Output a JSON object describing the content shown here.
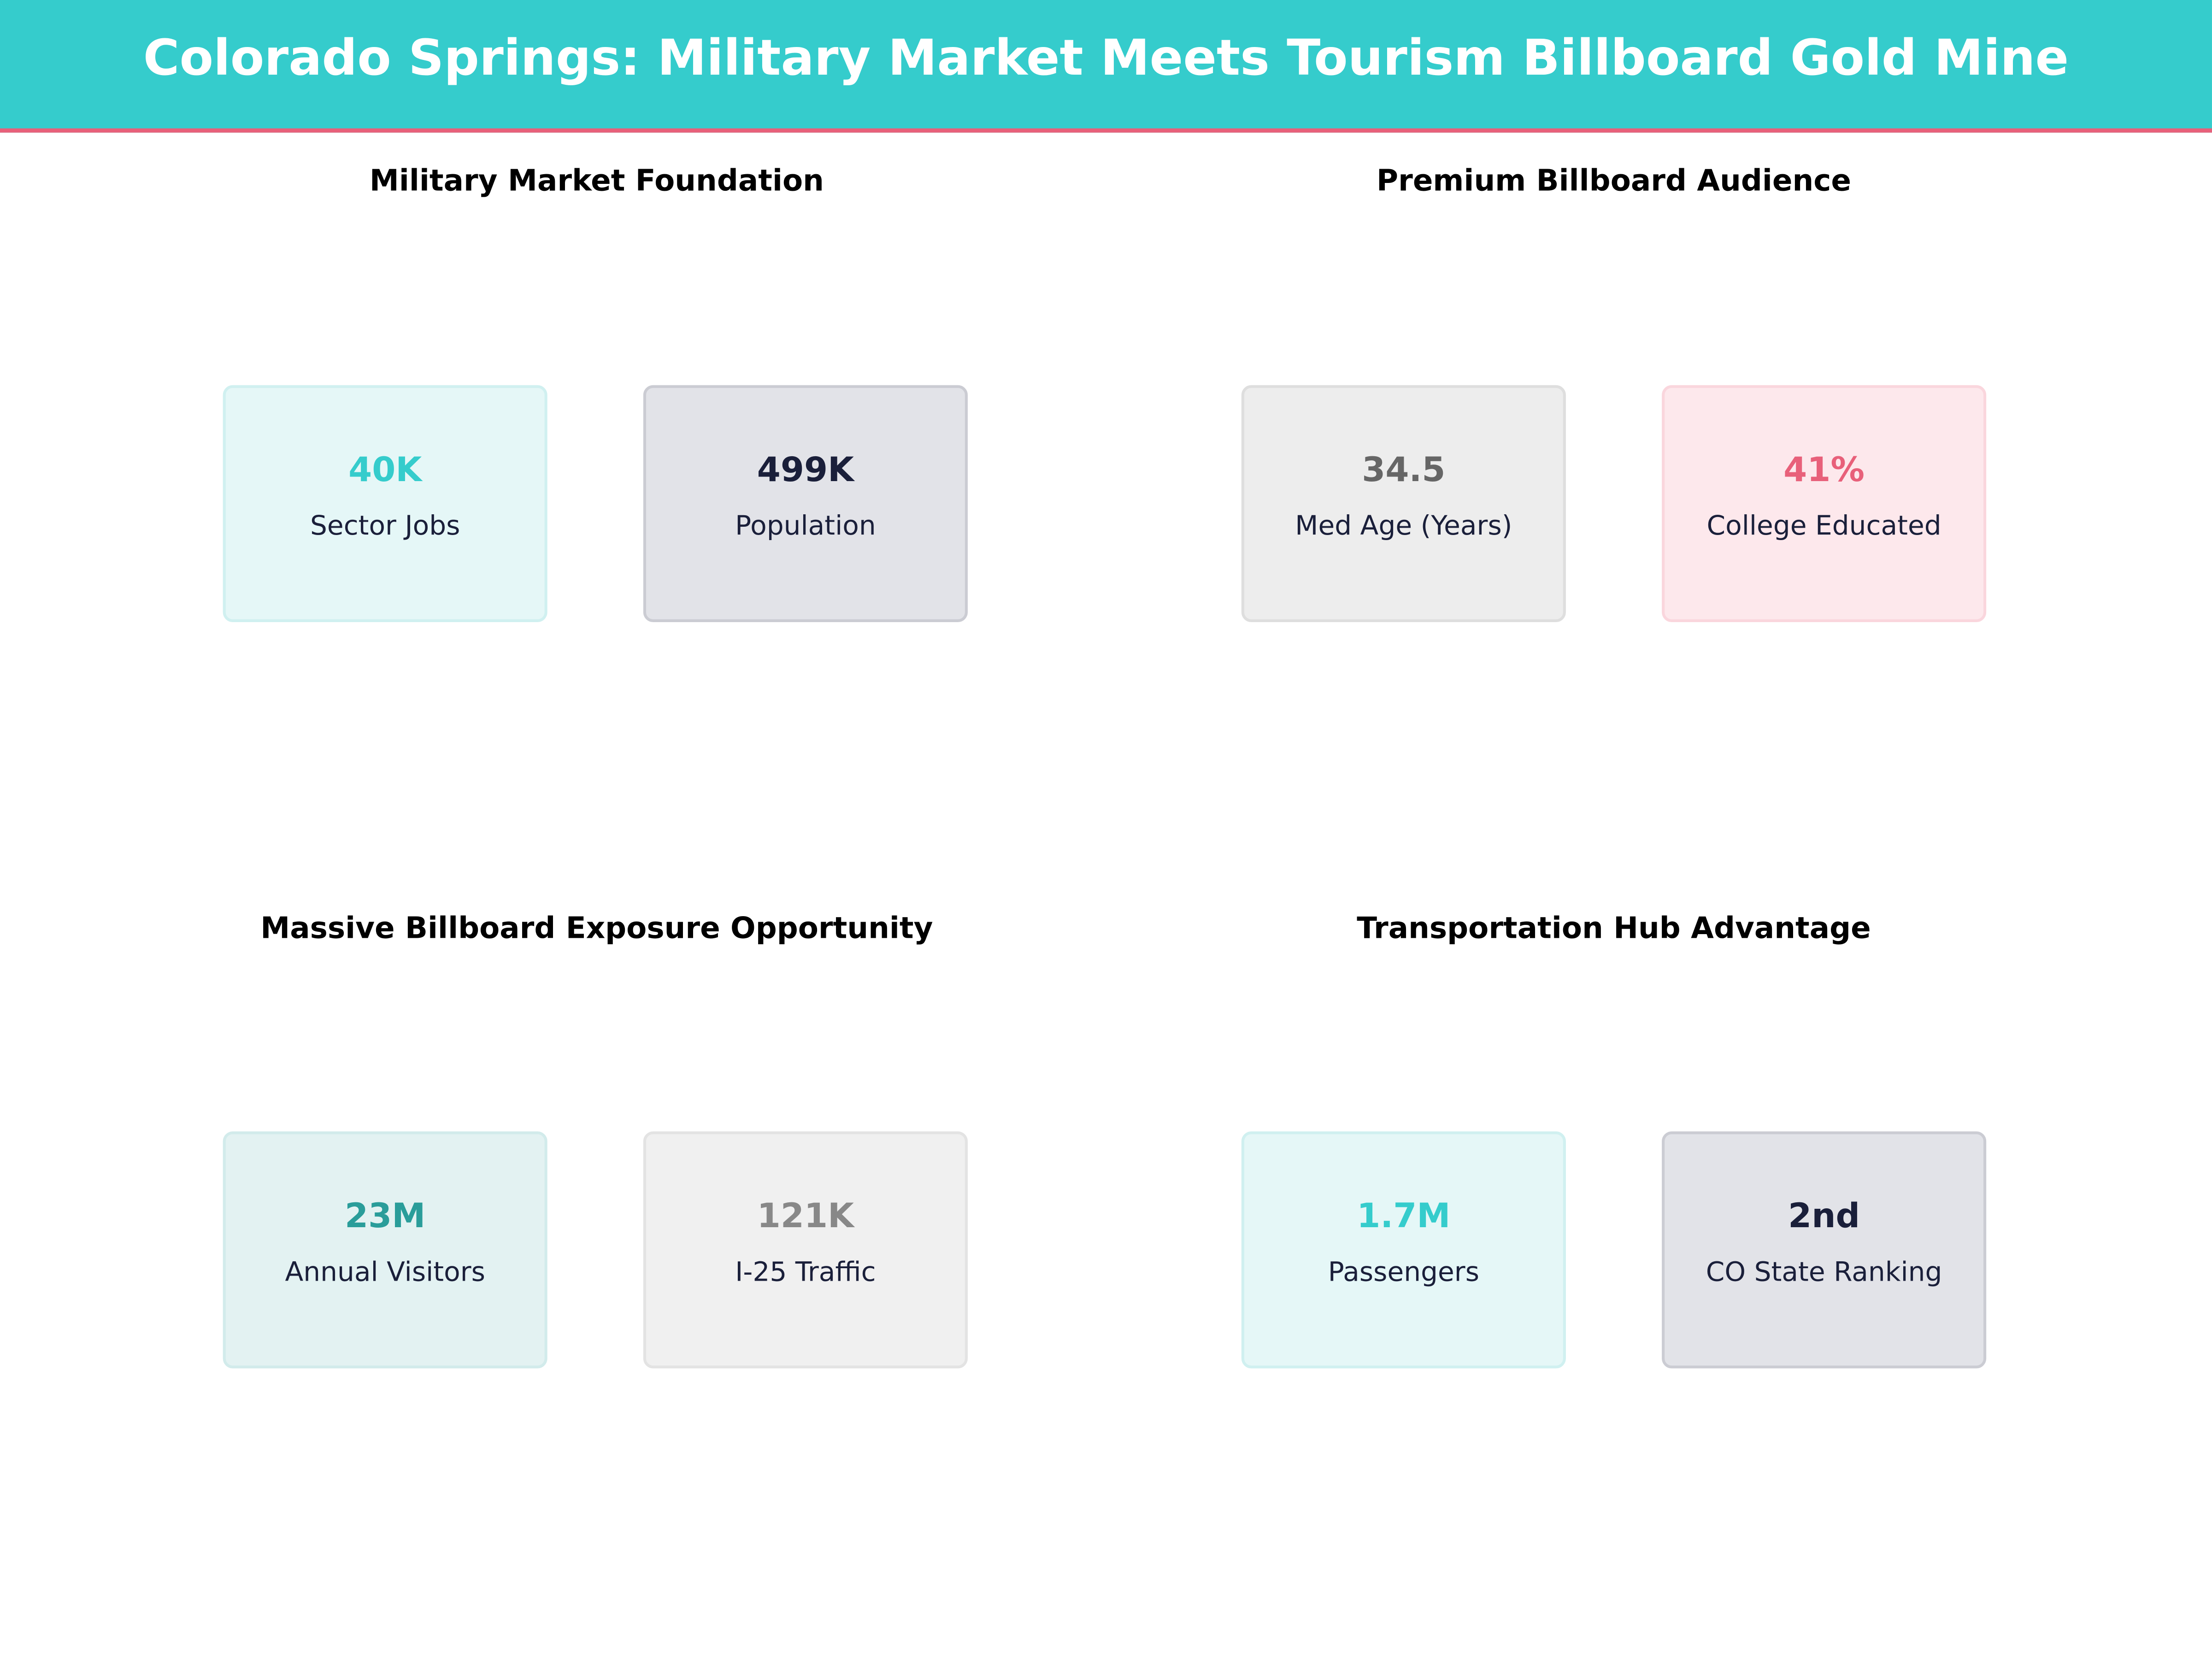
{
  "title": "Colorado Springs: Military Market Meets Tourism Billboard Gold Mine",
  "colors": {
    "header": "#35CCCC",
    "accent": "#E8607A"
  },
  "chart_data": [
    {
      "type": "table",
      "title": "Military Market Foundation",
      "metrics": [
        {
          "value": "40K",
          "label": "Sector Jobs",
          "color": "#35CCCC",
          "bg": "#E5F7F7",
          "border": "#D0F0F0"
        },
        {
          "value": "499K",
          "label": "Population",
          "color": "#1A1F3A",
          "bg": "#E2E3E8",
          "border": "#CBCCD3"
        }
      ]
    },
    {
      "type": "table",
      "title": "Premium Billboard Audience",
      "metrics": [
        {
          "value": "34.5",
          "label": "Med Age (Years)",
          "color": "#666666",
          "bg": "#EDEDED",
          "border": "#DEDEDE"
        },
        {
          "value": "41%",
          "label": "College Educated",
          "color": "#E8607A",
          "bg": "#FDE8EC",
          "border": "#FAD6DD"
        }
      ]
    },
    {
      "type": "table",
      "title": "Massive Billboard Exposure Opportunity",
      "metrics": [
        {
          "value": "23M",
          "label": "Annual Visitors",
          "color": "#2A9D9A",
          "bg": "#E3F2F2",
          "border": "#D2EBEB"
        },
        {
          "value": "121K",
          "label": "I-25 Traffic",
          "color": "#888888",
          "bg": "#F0F0F0",
          "border": "#E3E3E3"
        }
      ]
    },
    {
      "type": "table",
      "title": "Transportation Hub Advantage",
      "metrics": [
        {
          "value": "1.7M",
          "label": "Passengers",
          "color": "#35CCCC",
          "bg": "#E5F7F7",
          "border": "#D0F0F0"
        },
        {
          "value": "2nd",
          "label": "CO State Ranking",
          "color": "#1A1F3A",
          "bg": "#E2E3E8",
          "border": "#CBCCD3"
        }
      ]
    }
  ]
}
